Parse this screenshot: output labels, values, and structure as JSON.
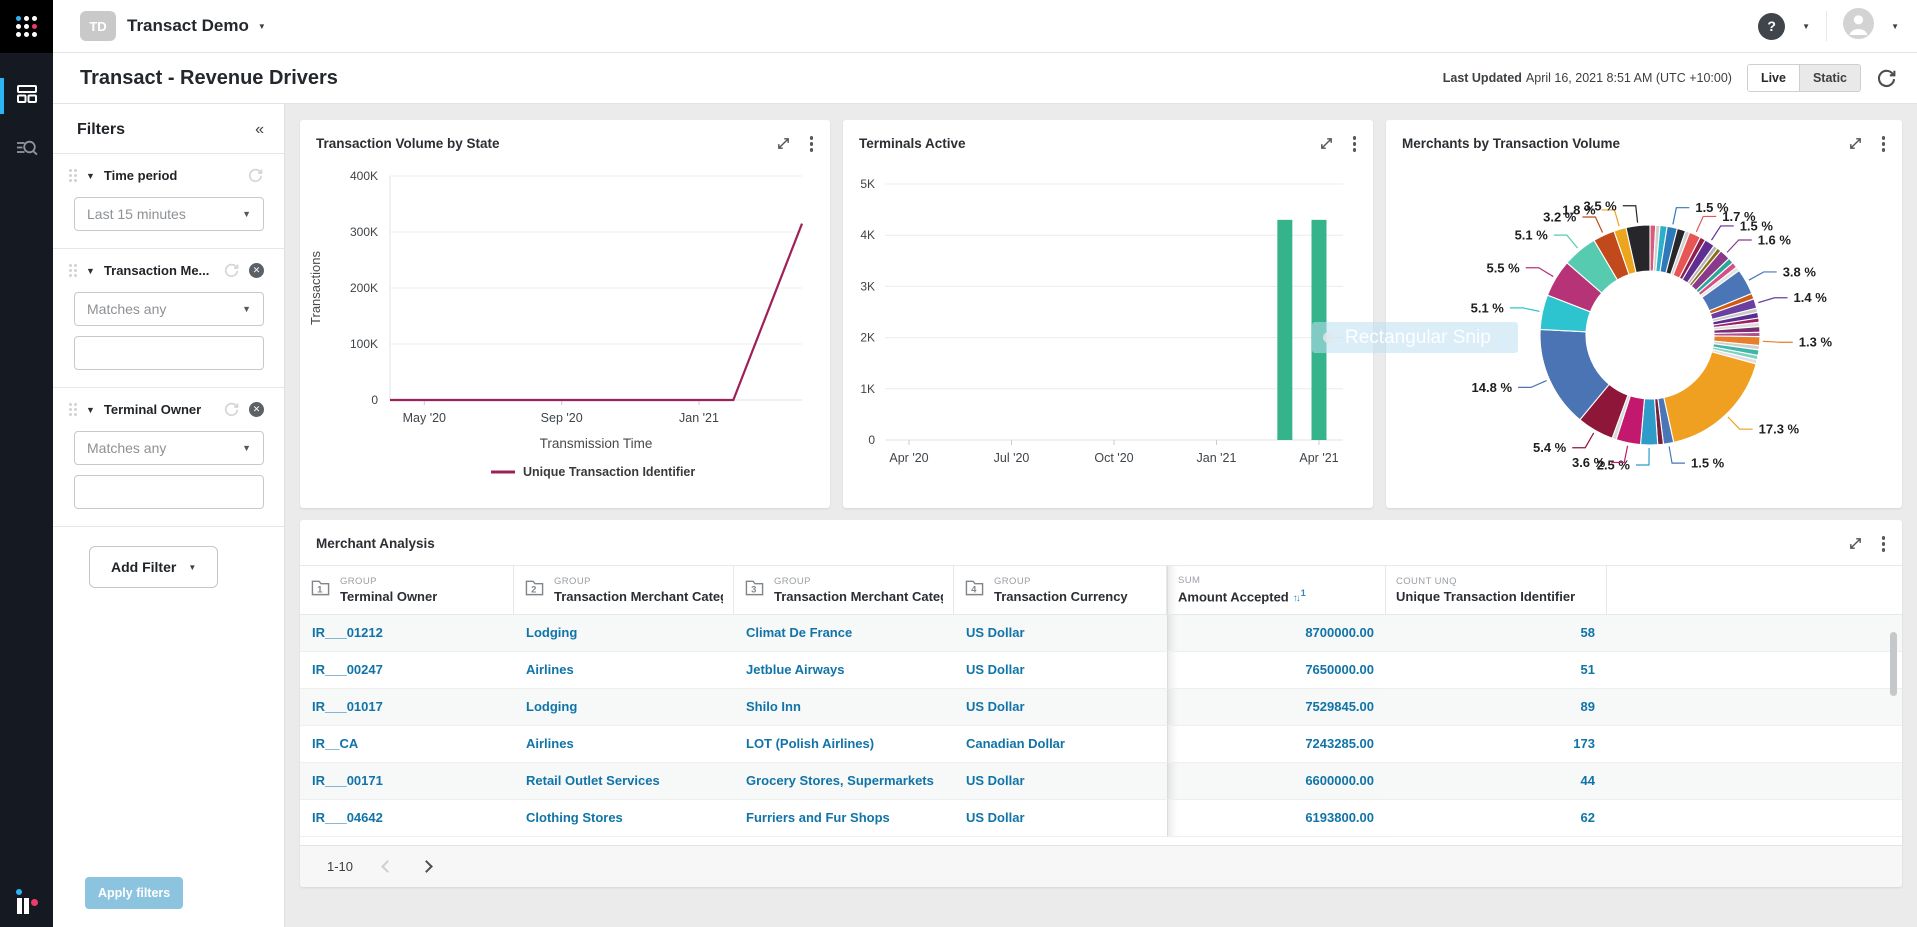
{
  "colors": {
    "accent_cyan": "#29b6f2",
    "accent_pink": "#ef3a6d",
    "link": "#1074a8",
    "line_series": "#9e2058",
    "bar_series": "#35b48c",
    "apply_button": "#8cc4df"
  },
  "topbar": {
    "workspace_initials": "TD",
    "workspace_name": "Transact Demo",
    "help_label": "?"
  },
  "page_header": {
    "title": "Transact - Revenue Drivers",
    "last_updated_label": "Last Updated",
    "last_updated_value": "April 16, 2021 8:51 AM (UTC +10:00)",
    "toggle": {
      "live": "Live",
      "static": "Static",
      "active": "Live"
    }
  },
  "filters": {
    "title": "Filters",
    "collapse_glyph": "«",
    "groups": [
      {
        "name": "Time period",
        "operator": "Last 15 minutes",
        "removable": false,
        "has_text_input": false
      },
      {
        "name": "Transaction Me...",
        "operator": "Matches any",
        "removable": true,
        "has_text_input": true
      },
      {
        "name": "Terminal Owner",
        "operator": "Matches any",
        "removable": true,
        "has_text_input": true
      }
    ],
    "add_filter_label": "Add Filter",
    "apply_label": "Apply filters"
  },
  "overlay": {
    "text": "Rectangular Snip"
  },
  "chart_data": [
    {
      "type": "line",
      "title": "Transaction Volume by State",
      "xlabel": "Transmission Time",
      "ylabel": "Transactions",
      "ylim": [
        0,
        400000
      ],
      "yticks": [
        "0",
        "100K",
        "200K",
        "300K",
        "400K"
      ],
      "x": [
        "Apr '20",
        "May '20",
        "Jun '20",
        "Jul '20",
        "Aug '20",
        "Sep '20",
        "Oct '20",
        "Nov '20",
        "Dec '20",
        "Jan '21",
        "Feb '21",
        "Mar '21",
        "Apr '21"
      ],
      "xticks_shown": [
        "May '20",
        "Sep '20",
        "Jan '21"
      ],
      "grid": true,
      "legend_position": "bottom",
      "series": [
        {
          "name": "Unique Transaction Identifier",
          "color": "#9e2058",
          "values": [
            0,
            0,
            0,
            0,
            0,
            0,
            0,
            0,
            0,
            0,
            0,
            157500,
            315000
          ]
        }
      ]
    },
    {
      "type": "bar",
      "title": "Terminals Active",
      "xlabel": "",
      "ylabel": "",
      "ylim": [
        0,
        5000
      ],
      "yticks": [
        "0",
        "1K",
        "2K",
        "3K",
        "4K",
        "5K"
      ],
      "x": [
        "Apr '20",
        "May '20",
        "Jun '20",
        "Jul '20",
        "Aug '20",
        "Sep '20",
        "Oct '20",
        "Nov '20",
        "Dec '20",
        "Jan '21",
        "Feb '21",
        "Mar '21",
        "Apr '21"
      ],
      "xticks_shown": [
        "Apr '20",
        "Jul '20",
        "Oct '20",
        "Jan '21",
        "Apr '21"
      ],
      "grid": true,
      "legend_position": "none",
      "series": [
        {
          "name": "Terminals Active",
          "color": "#35b48c",
          "values": [
            0,
            0,
            0,
            0,
            0,
            0,
            0,
            0,
            0,
            0,
            0,
            4300,
            4300
          ]
        }
      ]
    },
    {
      "type": "pie",
      "donut": true,
      "title": "Merchants by Transaction Volume",
      "slices": [
        {
          "pct": null,
          "weight": 0.4,
          "color": "#d85c7a"
        },
        {
          "pct": null,
          "weight": 0.3,
          "color": "#cfcfcf"
        },
        {
          "pct": null,
          "weight": 0.5,
          "color": "#2ab0c9"
        },
        {
          "pct": 1.5,
          "label": "1.5 %",
          "color": "#2e79b9"
        },
        {
          "pct": null,
          "weight": 0.6,
          "color": "#26262b"
        },
        {
          "pct": null,
          "weight": 0.3,
          "color": "#d0d0d0"
        },
        {
          "pct": 1.7,
          "label": "1.7 %",
          "color": "#e85555"
        },
        {
          "pct": null,
          "weight": 0.4,
          "color": "#8e1f4f"
        },
        {
          "pct": 1.5,
          "label": "1.5 %",
          "color": "#5e2f90"
        },
        {
          "pct": null,
          "weight": 0.3,
          "color": "#b5b5b5"
        },
        {
          "pct": null,
          "weight": 0.3,
          "color": "#8a6d1a"
        },
        {
          "pct": 1.6,
          "label": "1.6 %",
          "color": "#8a3a89"
        },
        {
          "pct": null,
          "weight": 0.4,
          "color": "#2aa79b"
        },
        {
          "pct": null,
          "weight": 0.4,
          "color": "#d45087"
        },
        {
          "pct": null,
          "weight": 0.3,
          "color": "#e3e3e3"
        },
        {
          "pct": 3.8,
          "label": "3.8 %",
          "color": "#4a76b8"
        },
        {
          "pct": null,
          "weight": 0.4,
          "color": "#cf5b13"
        },
        {
          "pct": 1.4,
          "label": "1.4 %",
          "color": "#6b3fa0"
        },
        {
          "pct": null,
          "weight": 0.3,
          "color": "#c9c9c9"
        },
        {
          "pct": null,
          "weight": 0.4,
          "color": "#5c2d91"
        },
        {
          "pct": null,
          "weight": 0.3,
          "color": "#9e1f63"
        },
        {
          "pct": null,
          "weight": 0.3,
          "color": "#dddddd"
        },
        {
          "pct": null,
          "weight": 0.4,
          "color": "#7a2e6f"
        },
        {
          "pct": null,
          "weight": 0.3,
          "color": "#b0528f"
        },
        {
          "pct": 1.3,
          "label": "1.3 %",
          "color": "#e87d2a"
        },
        {
          "pct": null,
          "weight": 0.3,
          "color": "#cfcfcf"
        },
        {
          "pct": null,
          "weight": 0.4,
          "color": "#3fb6a8"
        },
        {
          "pct": null,
          "weight": 0.3,
          "color": "#7fd0c0"
        },
        {
          "pct": null,
          "weight": 0.3,
          "color": "#e0e0e0"
        },
        {
          "pct": 17.3,
          "label": "17.3 %",
          "color": "#efa021"
        },
        {
          "pct": 1.5,
          "label": "1.5 %",
          "color": "#4a76b8"
        },
        {
          "pct": null,
          "weight": 0.4,
          "color": "#7a1f3d"
        },
        {
          "pct": 2.5,
          "label": "2.5 %",
          "color": "#2e9bc9"
        },
        {
          "pct": 3.6,
          "label": "3.6 %",
          "color": "#c2186e"
        },
        {
          "pct": null,
          "weight": 0.3,
          "color": "#d9d9d9"
        },
        {
          "pct": 5.4,
          "label": "5.4 %",
          "color": "#8e1638"
        },
        {
          "pct": 14.8,
          "label": "14.8 %",
          "color": "#4a74b4"
        },
        {
          "pct": 5.1,
          "label": "5.1 %",
          "color": "#2ec4cf"
        },
        {
          "pct": 5.5,
          "label": "5.5 %",
          "color": "#b73377"
        },
        {
          "pct": 5.1,
          "label": "5.1 %",
          "color": "#57cbb0"
        },
        {
          "pct": 3.2,
          "label": "3.2 %",
          "color": "#c1491c"
        },
        {
          "pct": 1.8,
          "label": "1.8 %",
          "color": "#eca51e"
        },
        {
          "pct": 3.5,
          "label": "3.5 %",
          "color": "#26262b"
        }
      ]
    }
  ],
  "table": {
    "title": "Merchant Analysis",
    "columns": [
      {
        "group_tag": "GROUP",
        "name": "Terminal Owner",
        "icon_num": "1",
        "align": "left"
      },
      {
        "group_tag": "GROUP",
        "name": "Transaction Merchant Categ...",
        "icon_num": "2",
        "align": "left"
      },
      {
        "group_tag": "GROUP",
        "name": "Transaction Merchant Categ...",
        "icon_num": "3",
        "align": "left"
      },
      {
        "group_tag": "GROUP",
        "name": "Transaction Currency",
        "icon_num": "4",
        "align": "left"
      },
      {
        "group_tag": "SUM",
        "name": "Amount Accepted",
        "sort_rank": "1",
        "align": "right"
      },
      {
        "group_tag": "COUNT UNQ",
        "name": "Unique Transaction Identifier",
        "align": "right"
      }
    ],
    "rows": [
      [
        "IR___01212",
        "Lodging",
        "Climat De France",
        "US Dollar",
        "8700000.00",
        "58"
      ],
      [
        "IR___00247",
        "Airlines",
        "Jetblue Airways",
        "US Dollar",
        "7650000.00",
        "51"
      ],
      [
        "IR___01017",
        "Lodging",
        "Shilo Inn",
        "US Dollar",
        "7529845.00",
        "89"
      ],
      [
        "IR__CA",
        "Airlines",
        "LOT (Polish Airlines)",
        "Canadian Dollar",
        "7243285.00",
        "173"
      ],
      [
        "IR___00171",
        "Retail Outlet Services",
        "Grocery Stores, Supermarkets",
        "US Dollar",
        "6600000.00",
        "44"
      ],
      [
        "IR___04642",
        "Clothing Stores",
        "Furriers and Fur Shops",
        "US Dollar",
        "6193800.00",
        "62"
      ]
    ],
    "pagination": {
      "range": "1-10"
    }
  }
}
